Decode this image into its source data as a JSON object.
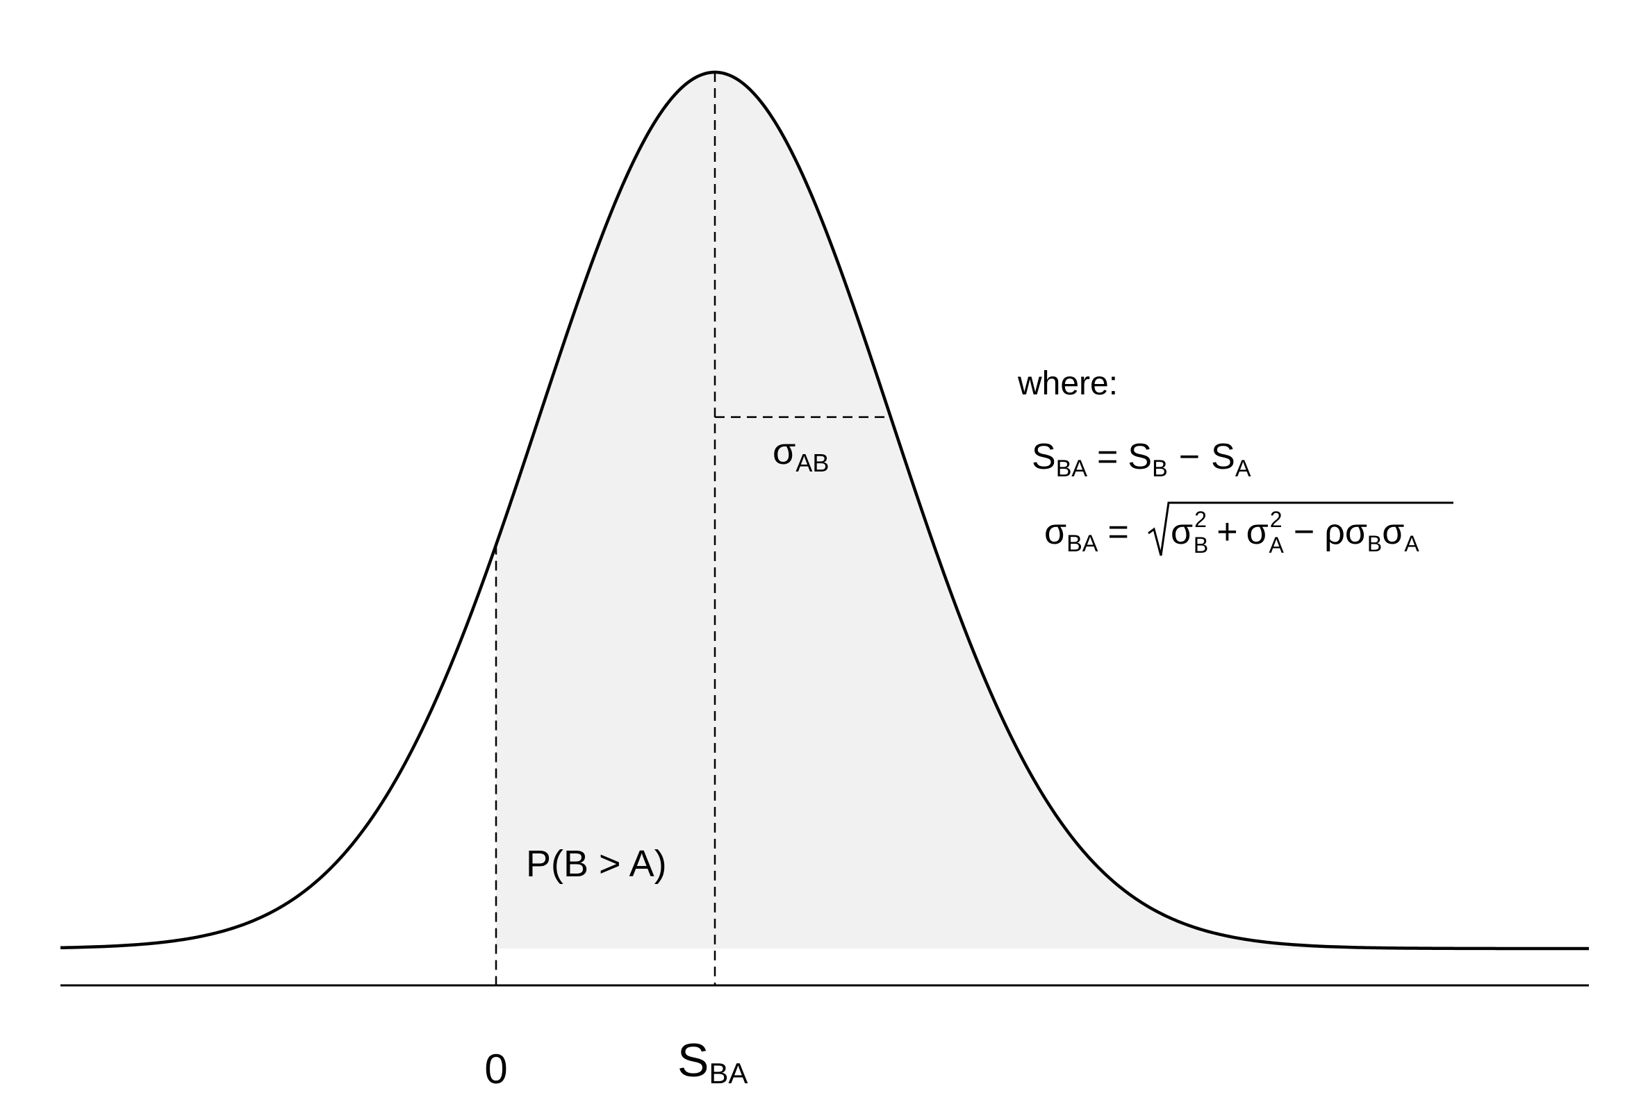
{
  "colors": {
    "curve": "#000000",
    "shade": "#f1f1f1",
    "background": "#ffffff"
  },
  "labels": {
    "zero": "0",
    "s_ba": {
      "main": "S",
      "sub": "BA"
    },
    "sigma_ab": {
      "main": "σ",
      "sub": "AB"
    },
    "prob": "P(B > A)",
    "where": "where:"
  },
  "equation1": {
    "lhs": "S",
    "lhs_sub": "BA",
    "eq": "=",
    "t1": "S",
    "t1_sub": "B",
    "minus": "−",
    "t2": "S",
    "t2_sub": "A"
  },
  "equation2": {
    "lhs": "σ",
    "lhs_sub": "BA",
    "eq": "=",
    "a": "σ",
    "a_sup": "2",
    "a_sub": "B",
    "plus": "+",
    "b": "σ",
    "b_sup": "2",
    "b_sub": "A",
    "minus": "−",
    "rho": "ρ",
    "c": "σ",
    "c_sub": "B",
    "d": "σ",
    "d_sub": "A"
  }
}
